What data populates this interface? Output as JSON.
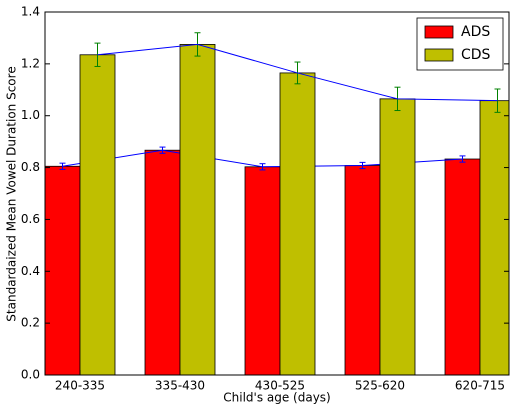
{
  "chart_data": {
    "type": "bar",
    "x_label": "Child's age (days)",
    "y_label": "Standardaized Mean Vowel Duration Score",
    "categories": [
      "240-335",
      "335-430",
      "430-525",
      "525-620",
      "620-715"
    ],
    "series": [
      {
        "name": "ADS",
        "color": "#ff0000",
        "error_color": "#0000ff",
        "line_color": "#0000ff",
        "values": [
          0.805,
          0.867,
          0.803,
          0.808,
          0.833
        ],
        "errors": [
          0.012,
          0.012,
          0.012,
          0.012,
          0.012
        ]
      },
      {
        "name": "CDS",
        "color": "#bfbf00",
        "error_color": "#008000",
        "line_color": "#0000ff",
        "values": [
          1.235,
          1.275,
          1.165,
          1.065,
          1.058
        ],
        "errors": [
          0.045,
          0.045,
          0.042,
          0.045,
          0.045
        ]
      }
    ],
    "ylim": [
      0,
      1.4
    ],
    "yticks": [
      {
        "value": 0,
        "label": "0.0"
      },
      0.2,
      0.4,
      0.6,
      0.8,
      {
        "value": 1,
        "label": "1.0"
      },
      1.2,
      1.4
    ],
    "legend": "upper right"
  }
}
